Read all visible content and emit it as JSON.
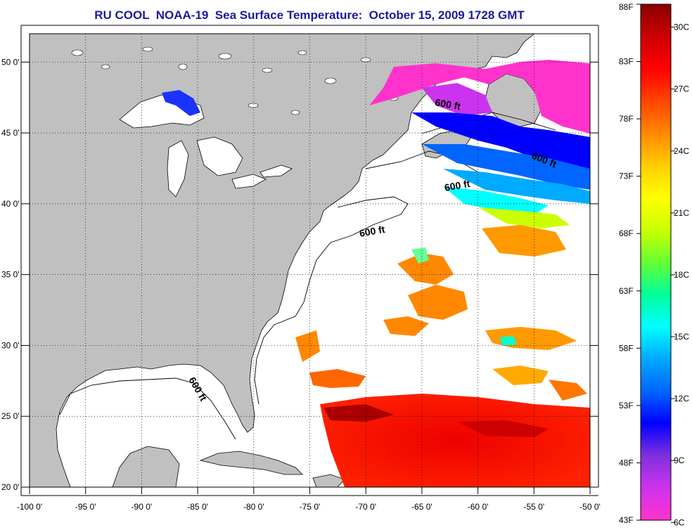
{
  "title": "RU COOL  NOAA-19  Sea Surface Temperature:  October 15, 2009 1728 GMT",
  "map": {
    "lon_range": [
      -100,
      -50
    ],
    "lat_range": [
      20,
      52
    ],
    "lon_ticks": [
      {
        "value": -100,
        "label": "-100 0'"
      },
      {
        "value": -95,
        "label": "-95 0'"
      },
      {
        "value": -90,
        "label": "-90 0'"
      },
      {
        "value": -85,
        "label": "-85 0'"
      },
      {
        "value": -80,
        "label": "-80 0'"
      },
      {
        "value": -75,
        "label": "-75 0'"
      },
      {
        "value": -70,
        "label": "-70 0'"
      },
      {
        "value": -65,
        "label": "-65 0'"
      },
      {
        "value": -60,
        "label": "-60 0'"
      },
      {
        "value": -55,
        "label": "-55 0'"
      },
      {
        "value": -50,
        "label": "-50 0'"
      }
    ],
    "lat_ticks": [
      {
        "value": 20,
        "label": "20 0'"
      },
      {
        "value": 25,
        "label": "25 0'"
      },
      {
        "value": 30,
        "label": "30 0'"
      },
      {
        "value": 35,
        "label": "35 0'"
      },
      {
        "value": 40,
        "label": "40 0'"
      },
      {
        "value": 45,
        "label": "45 0'"
      },
      {
        "value": 50,
        "label": "50 0'"
      }
    ],
    "grid": "dotted",
    "land_color": "#c0c0c0",
    "contour_labels": [
      "600 ft",
      "600 ft",
      "600 ft",
      "600 ft",
      "600 ft"
    ]
  },
  "colorbar": {
    "f_labels": [
      {
        "value": 88,
        "label": "88F"
      },
      {
        "value": 83,
        "label": "83F"
      },
      {
        "value": 78,
        "label": "78F"
      },
      {
        "value": 73,
        "label": "73F"
      },
      {
        "value": 68,
        "label": "68F"
      },
      {
        "value": 63,
        "label": "63F"
      },
      {
        "value": 58,
        "label": "58F"
      },
      {
        "value": 53,
        "label": "53F"
      },
      {
        "value": 48,
        "label": "48F"
      },
      {
        "value": 43,
        "label": "43F"
      }
    ],
    "c_labels": [
      {
        "value": 30,
        "label": "30C"
      },
      {
        "value": 27,
        "label": "27C"
      },
      {
        "value": 24,
        "label": "24C"
      },
      {
        "value": 21,
        "label": "21C"
      },
      {
        "value": 18,
        "label": "18C"
      },
      {
        "value": 15,
        "label": "15C"
      },
      {
        "value": 12,
        "label": "12C"
      },
      {
        "value": 9,
        "label": "9C"
      },
      {
        "value": 6,
        "label": "6C"
      }
    ],
    "colors": [
      "#ff33cc",
      "#cc33ee",
      "#8030dd",
      "#0000ff",
      "#0066ff",
      "#00aaff",
      "#00ffff",
      "#00ff99",
      "#66ff33",
      "#ccff00",
      "#ffff00",
      "#ffcc00",
      "#ff8800",
      "#ff4400",
      "#ff0000",
      "#cc0000",
      "#880000"
    ]
  }
}
